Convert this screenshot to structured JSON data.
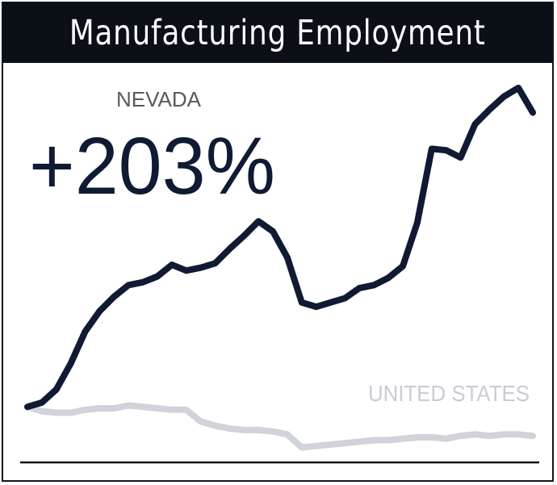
{
  "title": "Manufacturing Employment",
  "colors": {
    "nevada": "#111a33",
    "united_states": "#d0d3d9",
    "title_bg": "#0b0f16",
    "baseline": "#111111"
  },
  "chart_data": {
    "type": "line",
    "title": "Manufacturing Employment",
    "xlabel": "",
    "ylabel": "",
    "grid": false,
    "legend": "direct labels on the lines",
    "annotation": {
      "label": "NEVADA",
      "value": "+203%"
    },
    "ylim": [
      -0.6,
      2.45
    ],
    "series": [
      {
        "name": "NEVADA",
        "values": [
          0.0,
          0.03,
          0.12,
          0.3,
          0.52,
          0.66,
          0.76,
          0.84,
          0.86,
          0.9,
          0.98,
          0.94,
          0.96,
          0.99,
          1.09,
          1.18,
          1.28,
          1.21,
          1.03,
          0.72,
          0.69,
          0.72,
          0.75,
          0.82,
          0.84,
          0.89,
          0.97,
          1.27,
          1.78,
          1.77,
          1.72,
          1.95,
          2.05,
          2.14,
          2.2,
          2.03
        ]
      },
      {
        "name": "UNITED STATES",
        "values": [
          0.0,
          -0.03,
          -0.04,
          -0.04,
          -0.02,
          -0.01,
          -0.01,
          0.01,
          0.0,
          -0.01,
          -0.02,
          -0.02,
          -0.1,
          -0.13,
          -0.15,
          -0.16,
          -0.16,
          -0.17,
          -0.19,
          -0.28,
          -0.27,
          -0.26,
          -0.25,
          -0.24,
          -0.23,
          -0.23,
          -0.22,
          -0.21,
          -0.21,
          -0.22,
          -0.2,
          -0.19,
          -0.2,
          -0.19,
          -0.19,
          -0.2
        ]
      }
    ]
  }
}
